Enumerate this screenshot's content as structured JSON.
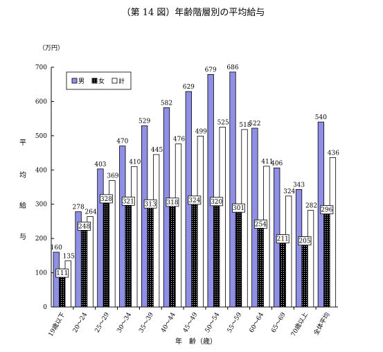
{
  "chart_data": {
    "type": "bar",
    "title": "（第 14 図）年齢階層別の平均給与",
    "unit": "（万円）",
    "ylabel": "平均給与",
    "xlabel": "年　齢（歳）",
    "ylim": [
      0,
      700
    ],
    "yticks": [
      0,
      100,
      200,
      300,
      400,
      500,
      600,
      700
    ],
    "grid": false,
    "legend_position": "top-left",
    "categories": [
      "19歳以下",
      "20～24",
      "25～29",
      "30～34",
      "35～39",
      "40～44",
      "45～49",
      "50～54",
      "55～59",
      "60～64",
      "65～69",
      "70歳以上",
      "全体平均"
    ],
    "series": [
      {
        "name": "男",
        "color": "#8f8fe6",
        "values": [
          160,
          278,
          403,
          470,
          529,
          582,
          629,
          679,
          686,
          522,
          406,
          343,
          540
        ]
      },
      {
        "name": "女",
        "color": "#000000",
        "values": [
          111,
          248,
          328,
          321,
          313,
          318,
          324,
          320,
          301,
          254,
          211,
          205,
          296
        ]
      },
      {
        "name": "計",
        "color": "#ffffff",
        "values": [
          135,
          264,
          369,
          410,
          445,
          476,
          499,
          525,
          518,
          411,
          324,
          282,
          436
        ]
      }
    ]
  }
}
